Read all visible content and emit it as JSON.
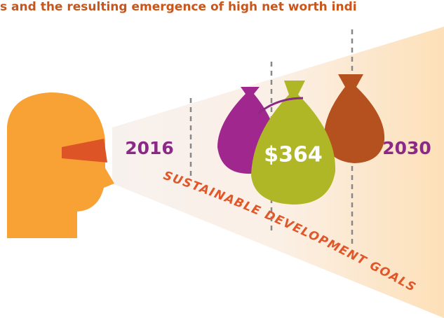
{
  "header": {
    "title": "s and the resulting emergence of high net worth indi"
  },
  "labels": {
    "start_year": "2016",
    "end_year": "2030",
    "amount": "$364",
    "banner": "SUSTAINABLE DEVELOPMENT GOALS"
  }
}
